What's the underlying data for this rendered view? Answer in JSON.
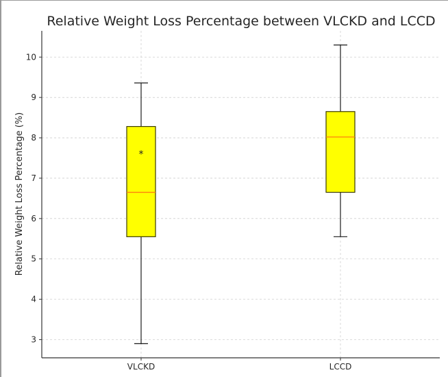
{
  "chart_data": {
    "type": "box",
    "title": "Relative Weight Loss Percentage between VLCKD and LCCD",
    "xlabel": "",
    "ylabel": "Relative Weight Loss Percentage (%)",
    "ylim": [
      2.55,
      10.65
    ],
    "yticks": [
      3,
      4,
      5,
      6,
      7,
      8,
      9,
      10
    ],
    "grid": true,
    "categories": [
      "VLCKD",
      "LCCD"
    ],
    "boxes": [
      {
        "label": "VLCKD",
        "whisker_low": 2.9,
        "q1": 5.55,
        "median": 6.65,
        "q3": 8.28,
        "whisker_high": 9.36,
        "annotation": "*",
        "annotation_y": 7.62
      },
      {
        "label": "LCCD",
        "whisker_low": 5.55,
        "q1": 6.65,
        "median": 8.02,
        "q3": 8.65,
        "whisker_high": 10.3,
        "annotation": "",
        "annotation_y": null
      }
    ],
    "colors": {
      "box_fill": "#ffff00",
      "box_edge": "#3a3a00",
      "median": "#ff7f0e",
      "whisker": "#1a1a1a",
      "grid": "#cfcfcf"
    }
  }
}
